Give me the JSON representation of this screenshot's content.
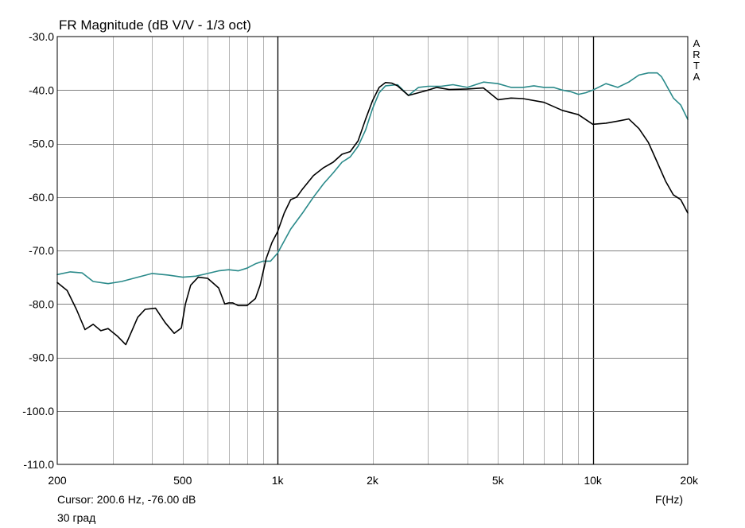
{
  "title": "FR Magnitude (dB V/V - 1/3 oct)",
  "cursor_text": "Cursor: 200.6 Hz, -76.00 dB",
  "note_text": "30 град",
  "x_unit_label": "F(Hz)",
  "brand_letters": [
    "A",
    "R",
    "T",
    "A"
  ],
  "colors": {
    "teal": "#2a8a8a",
    "black": "#000000",
    "grid_major": "#808080",
    "grid_minor": "#b4b4b4"
  },
  "chart_data": {
    "type": "line",
    "title": "FR Magnitude (dB V/V - 1/3 oct)",
    "xlabel": "F(Hz)",
    "ylabel": "",
    "xscale": "log",
    "xlim": [
      200,
      20000
    ],
    "ylim": [
      -110,
      -30
    ],
    "grid": true,
    "x_ticks": [
      200,
      500,
      1000,
      2000,
      5000,
      10000,
      20000
    ],
    "x_tick_labels": [
      "200",
      "500",
      "1k",
      "2k",
      "5k",
      "10k",
      "20k"
    ],
    "y_ticks": [
      -30,
      -40,
      -50,
      -60,
      -70,
      -80,
      -90,
      -100,
      -110
    ],
    "y_tick_labels": [
      "-30.0",
      "-40.0",
      "-50.0",
      "-60.0",
      "-70.0",
      "-80.0",
      "-90.0",
      "-100.0",
      "-110.0"
    ],
    "series": [
      {
        "color": "#2a8a8a",
        "x": [
          200,
          220,
          240,
          260,
          290,
          320,
          360,
          400,
          450,
          500,
          550,
          600,
          650,
          700,
          750,
          800,
          850,
          900,
          950,
          1000,
          1100,
          1200,
          1300,
          1400,
          1500,
          1600,
          1700,
          1800,
          1900,
          2000,
          2100,
          2200,
          2400,
          2600,
          2800,
          3000,
          3300,
          3600,
          4000,
          4500,
          5000,
          5500,
          6000,
          6500,
          7000,
          7500,
          8000,
          8500,
          9000,
          9500,
          10000,
          11000,
          12000,
          13000,
          14000,
          15000,
          16000,
          16500,
          17000,
          18000,
          19000,
          20000
        ],
        "y": [
          -74.5,
          -74.0,
          -74.2,
          -75.8,
          -76.2,
          -75.8,
          -75.0,
          -74.3,
          -74.6,
          -75.0,
          -74.8,
          -74.3,
          -73.8,
          -73.6,
          -73.8,
          -73.3,
          -72.5,
          -72.0,
          -72.0,
          -70.5,
          -66.0,
          -63.0,
          -60.0,
          -57.5,
          -55.5,
          -53.5,
          -52.5,
          -50.5,
          -47.5,
          -43.5,
          -40.5,
          -39.2,
          -39.0,
          -41.0,
          -39.5,
          -39.3,
          -39.3,
          -39.0,
          -39.5,
          -38.5,
          -38.8,
          -39.5,
          -39.5,
          -39.2,
          -39.5,
          -39.5,
          -40.0,
          -40.3,
          -40.8,
          -40.5,
          -40.0,
          -38.8,
          -39.5,
          -38.5,
          -37.2,
          -36.8,
          -36.8,
          -37.5,
          -38.8,
          -41.5,
          -42.8,
          -45.5
        ]
      },
      {
        "color": "#000000",
        "x": [
          200,
          215,
          230,
          245,
          260,
          275,
          290,
          310,
          330,
          345,
          360,
          380,
          410,
          440,
          470,
          495,
          510,
          530,
          560,
          600,
          650,
          680,
          700,
          720,
          750,
          800,
          850,
          880,
          920,
          960,
          1000,
          1050,
          1100,
          1150,
          1200,
          1300,
          1400,
          1500,
          1600,
          1700,
          1800,
          1900,
          2000,
          2100,
          2200,
          2300,
          2400,
          2600,
          2800,
          3000,
          3200,
          3500,
          4000,
          4500,
          5000,
          5500,
          6000,
          7000,
          8000,
          9000,
          10000,
          11000,
          12000,
          13000,
          14000,
          15000,
          16000,
          17000,
          18000,
          19000,
          20000
        ],
        "y": [
          -76.0,
          -77.5,
          -81.0,
          -84.8,
          -83.8,
          -85.0,
          -84.6,
          -86.0,
          -87.6,
          -85.0,
          -82.5,
          -81.0,
          -80.8,
          -83.5,
          -85.5,
          -84.5,
          -80.0,
          -76.5,
          -75.0,
          -75.2,
          -77.0,
          -80.0,
          -79.8,
          -79.8,
          -80.3,
          -80.3,
          -79.0,
          -76.5,
          -71.5,
          -68.5,
          -66.5,
          -63.0,
          -60.5,
          -60.0,
          -58.5,
          -56.0,
          -54.5,
          -53.5,
          -52.0,
          -51.5,
          -49.5,
          -45.5,
          -42.0,
          -39.5,
          -38.6,
          -38.7,
          -39.2,
          -41.0,
          -40.5,
          -40.0,
          -39.5,
          -39.9,
          -39.8,
          -39.6,
          -41.8,
          -41.5,
          -41.6,
          -42.3,
          -43.8,
          -44.6,
          -46.4,
          -46.2,
          -45.8,
          -45.4,
          -47.2,
          -49.8,
          -53.5,
          -57.0,
          -59.6,
          -60.5,
          -63.0
        ]
      }
    ]
  }
}
